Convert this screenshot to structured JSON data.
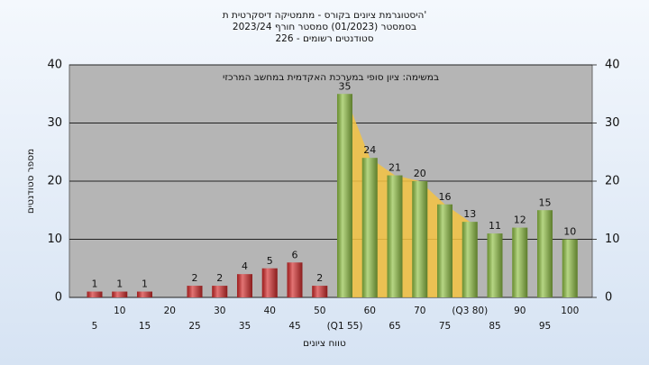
{
  "chart_data": {
    "type": "bar",
    "title_lines": [
      "היסטוגרמת ציונים בקורס - מתמטיקה דיסקרטית ת'",
      "בסמסטר (01/2023)  סמסטר חורף 2023/24",
      "סטודנטים רשומים - 226"
    ],
    "subtitle": "במשימה: ציון סופי במערכת האקדמית במחשב המרכזי",
    "x_label": "טווח ציונים",
    "y_label": "מספר סטודנטים",
    "categories": [
      "5",
      "10",
      "15",
      "20",
      "25",
      "30",
      "35",
      "40",
      "45",
      "50",
      "(Q1 55)",
      "60",
      "65",
      "70",
      "75",
      "(Q3 80)",
      "85",
      "90",
      "95",
      "100"
    ],
    "values": [
      1,
      1,
      1,
      0,
      2,
      2,
      4,
      5,
      6,
      2,
      35,
      24,
      21,
      20,
      16,
      13,
      11,
      12,
      15,
      10
    ],
    "value_labels": [
      "1",
      "1",
      "1",
      null,
      "2",
      "2",
      "4",
      "5",
      "6",
      "2",
      "35",
      "24",
      "21",
      "20",
      "16",
      "13",
      "11",
      "12",
      "15",
      "10"
    ],
    "colors": [
      "#d42a2a",
      "#d42a2a",
      "#d42a2a",
      "#d42a2a",
      "#d42a2a",
      "#d42a2a",
      "#d42a2a",
      "#d42a2a",
      "#d42a2a",
      "#d42a2a",
      "#8fc043",
      "#8fc043",
      "#8fc043",
      "#8fc043",
      "#8fc043",
      "#8fc043",
      "#8fc043",
      "#8fc043",
      "#8fc043",
      "#8fc043"
    ],
    "quartile_range": [
      10,
      15
    ],
    "quartile_color": "#f5c342",
    "ylim": [
      0,
      40
    ],
    "yticks": [
      0,
      10,
      20,
      30,
      40
    ],
    "y2lim": [
      0,
      40
    ],
    "y2ticks": [
      0,
      10,
      20,
      30,
      40
    ],
    "grid": true
  }
}
